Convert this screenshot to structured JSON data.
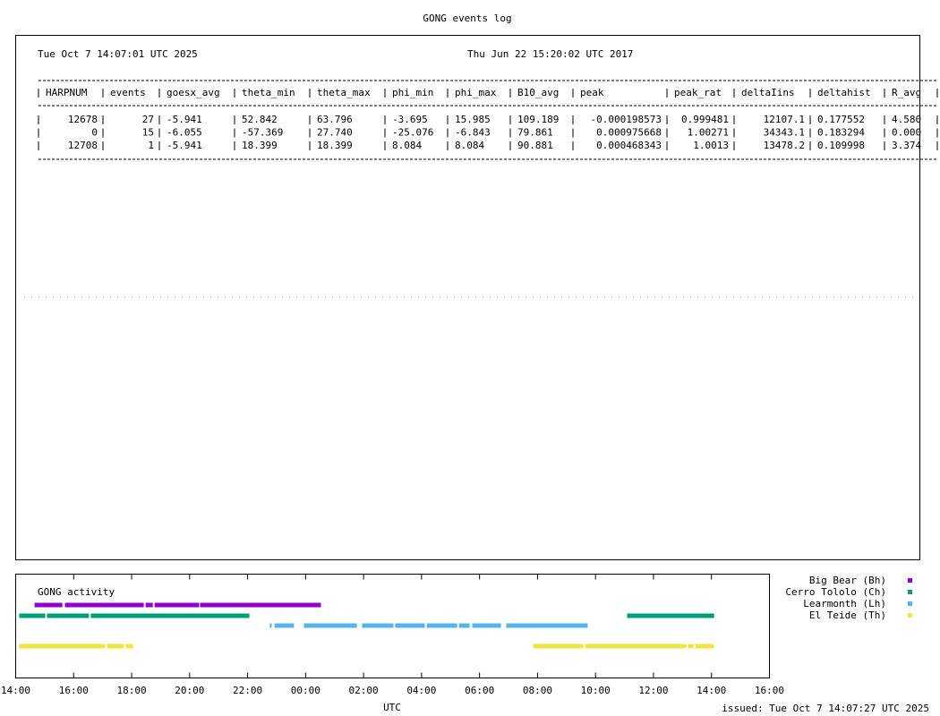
{
  "title": "GONG events log",
  "date_left": "Tue Oct 7 14:07:01 UTC 2025",
  "date_right": "Thu Jun 22 15:20:02 UTC 2017",
  "issued": "issued: Tue Oct  7 14:07:27 UTC 2025",
  "table": {
    "columns": [
      "HARPNUM",
      "events",
      "goesx_avg",
      "theta_min",
      "theta_max",
      "phi_min",
      "phi_max",
      "B10_avg",
      "peak",
      "peak_rat",
      "deltaIins",
      "deltahist",
      "R_avg"
    ],
    "rows": [
      [
        "12678",
        "27",
        "-5.941",
        "52.842",
        "63.796",
        "-3.695",
        "15.985",
        "109.189",
        "-0.000198573",
        "0.999481",
        "12107.1",
        "0.177552",
        "4.580"
      ],
      [
        "0",
        "15",
        "-6.055",
        "-57.369",
        "27.740",
        "-25.076",
        "-6.843",
        "79.861",
        "0.000975668",
        "1.00271",
        "34343.1",
        "0.183294",
        "0.000"
      ],
      [
        "12708",
        "1",
        "-5.941",
        "18.399",
        "18.399",
        "8.084",
        "8.084",
        "90.881",
        "0.000468343",
        "1.0013",
        "13478.2",
        "0.109998",
        "3.374"
      ]
    ]
  },
  "chart_data": {
    "type": "timeline",
    "title": "GONG activity",
    "xlabel": "UTC",
    "xlim": [
      14,
      40
    ],
    "xticks": [
      {
        "value": 14,
        "label": "14:00"
      },
      {
        "value": 16,
        "label": "16:00"
      },
      {
        "value": 18,
        "label": "18:00"
      },
      {
        "value": 20,
        "label": "20:00"
      },
      {
        "value": 22,
        "label": "22:00"
      },
      {
        "value": 24,
        "label": "00:00"
      },
      {
        "value": 26,
        "label": "02:00"
      },
      {
        "value": 28,
        "label": "04:00"
      },
      {
        "value": 30,
        "label": "06:00"
      },
      {
        "value": 32,
        "label": "08:00"
      },
      {
        "value": 34,
        "label": "10:00"
      },
      {
        "value": 36,
        "label": "12:00"
      },
      {
        "value": 38,
        "label": "14:00"
      },
      {
        "value": 40,
        "label": "16:00"
      }
    ],
    "series": [
      {
        "name": "Big Bear (Bh)",
        "color": "#9400d3",
        "segments": [
          [
            14.65,
            15.61
          ],
          [
            15.7,
            18.42
          ],
          [
            18.48,
            18.73
          ],
          [
            18.79,
            20.33
          ],
          [
            20.36,
            24.53
          ]
        ]
      },
      {
        "name": "Cerro Tololo (Ch)",
        "color": "#009e73",
        "segments": [
          [
            14.12,
            15.02
          ],
          [
            15.08,
            16.53
          ],
          [
            16.59,
            22.06
          ],
          [
            35.09,
            38.09
          ]
        ]
      },
      {
        "name": "Learmonth (Lh)",
        "color": "#56b4e9",
        "segments": [
          [
            22.77,
            22.83
          ],
          [
            22.93,
            23.6
          ],
          [
            23.94,
            25.77
          ],
          [
            25.95,
            27.03
          ],
          [
            27.09,
            28.11
          ],
          [
            28.18,
            29.23
          ],
          [
            29.29,
            29.66
          ],
          [
            29.75,
            30.74
          ],
          [
            30.92,
            33.73
          ]
        ]
      },
      {
        "name": "El Teide (Th)",
        "color": "#f0e442",
        "segments": [
          [
            14.12,
            17.09
          ],
          [
            17.15,
            17.74
          ],
          [
            17.8,
            18.05
          ],
          [
            31.85,
            33.58
          ],
          [
            33.64,
            37.13
          ],
          [
            37.19,
            37.38
          ],
          [
            37.44,
            38.09
          ]
        ]
      }
    ]
  }
}
